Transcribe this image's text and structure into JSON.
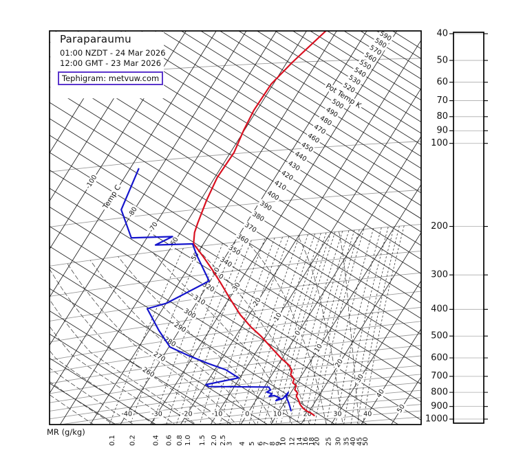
{
  "header": {
    "station": "Paraparaumu",
    "local_time": "01:00 NZDT - 24 Mar 2026",
    "gmt_time": "12:00 GMT - 23 Mar 2026",
    "source_label": "Tephigram: metvuw.com"
  },
  "axes": {
    "pressure_ticks": [
      40,
      50,
      60,
      70,
      80,
      90,
      100,
      200,
      300,
      400,
      500,
      600,
      700,
      800,
      900,
      1000
    ],
    "mr_axis_title": "MR (g/kg)",
    "mr_tick_labels": [
      "0.1",
      "0.2",
      "0.4",
      "0.6",
      "0.8",
      "1.0",
      "1.5",
      "2.0",
      "2.5",
      "3",
      "4",
      "5",
      "6",
      "7",
      "8",
      "9",
      "10",
      "12",
      "14",
      "16",
      "18",
      "20",
      "25",
      "30",
      "35",
      "40",
      "45",
      "50"
    ],
    "isotherm_axis_title": "Temp C",
    "dry_adiabat_axis_title": "Pot Temp K",
    "isotherm_band_labels": [
      -100,
      -80,
      -70,
      -60,
      -50,
      -40,
      -30,
      -20,
      -10,
      0,
      10,
      20,
      30,
      40,
      50
    ],
    "isotherm_bottom_labels": [
      -40,
      -30,
      -20,
      -10,
      0,
      10,
      20,
      30,
      40
    ],
    "dry_adiabat_labels": [
      260,
      270,
      280,
      290,
      300,
      310,
      320,
      330,
      340,
      350,
      360,
      370,
      380,
      390,
      400,
      410,
      420,
      430,
      440,
      450,
      460,
      470,
      480,
      490,
      500,
      520,
      530,
      540,
      550,
      560,
      570,
      580,
      590
    ]
  },
  "chart_data": {
    "type": "line",
    "title": "Tephigram sounding for Paraparaumu",
    "x_meaning": "temperature (C) along skewed isotherms",
    "y_meaning": "pressure (hPa), logarithmic, 40 at top to 1000 at bottom",
    "grid": {
      "isotherms_c": {
        "min": -120,
        "max": 60,
        "step": 10
      },
      "dry_adiabats_k": {
        "min": 230,
        "max": 600,
        "step": 10
      },
      "isobars_hpa": [
        50,
        100,
        150,
        200,
        250,
        300,
        350,
        400,
        450,
        500,
        550,
        600,
        650,
        700,
        750,
        800,
        850,
        900,
        950,
        1000
      ],
      "mixing_ratio_lines_gkg": [
        0.1,
        0.2,
        0.4,
        0.6,
        0.8,
        1.0,
        1.5,
        2.0,
        2.5,
        3,
        4,
        5,
        6,
        7,
        8,
        9,
        10,
        12,
        14,
        16,
        18,
        20,
        25,
        30,
        35,
        40,
        45,
        50
      ],
      "saturated_adiabat_surface_temps_c": {
        "min": -30,
        "max": 40,
        "step": 5
      },
      "mixing_ratio_top_hpa": 200
    },
    "series": [
      {
        "name": "temperature",
        "color": "#d91020",
        "points_p_t": [
          [
            38,
            -53.1
          ],
          [
            50,
            -58.2
          ],
          [
            59,
            -60.7
          ],
          [
            72,
            -61.0
          ],
          [
            84,
            -60.2
          ],
          [
            99,
            -58.8
          ],
          [
            119,
            -59.2
          ],
          [
            141,
            -58.0
          ],
          [
            167,
            -56.2
          ],
          [
            179,
            -55.3
          ],
          [
            195,
            -53.3
          ],
          [
            217,
            -47.5
          ],
          [
            244,
            -41.4
          ],
          [
            272,
            -36.0
          ],
          [
            310,
            -29.7
          ],
          [
            355,
            -23.0
          ],
          [
            394,
            -17.1
          ],
          [
            434,
            -11.6
          ],
          [
            481,
            -6.3
          ],
          [
            536,
            -0.6
          ],
          [
            577,
            3.7
          ],
          [
            607,
            5.8
          ],
          [
            628,
            6.2
          ],
          [
            653,
            8.2
          ],
          [
            675,
            8.6
          ],
          [
            694,
            10.3
          ],
          [
            718,
            10.7
          ],
          [
            741,
            12.3
          ],
          [
            762,
            12.6
          ],
          [
            791,
            14.2
          ],
          [
            820,
            15.5
          ],
          [
            853,
            17.5
          ],
          [
            877,
            19.4
          ],
          [
            896,
            21.2
          ],
          [
            914,
            22.5
          ]
        ]
      },
      {
        "name": "dewpoint",
        "color": "#1515cc",
        "points_p_t": [
          [
            105,
            -87.1
          ],
          [
            141,
            -84.4
          ],
          [
            176,
            -75.2
          ],
          [
            181,
            -61.8
          ],
          [
            190,
            -65.7
          ],
          [
            195,
            -53.6
          ],
          [
            213,
            -50.0
          ],
          [
            264,
            -40.4
          ],
          [
            300,
            -50.0
          ],
          [
            306,
            -55.2
          ],
          [
            366,
            -46.8
          ],
          [
            425,
            -39.7
          ],
          [
            470,
            -31.9
          ],
          [
            516,
            -24.0
          ],
          [
            560,
            -16.4
          ],
          [
            611,
            -10.4
          ],
          [
            625,
            -19.9
          ],
          [
            638,
            -18.6
          ],
          [
            684,
            1.5
          ],
          [
            703,
            2.7
          ],
          [
            714,
            1.9
          ],
          [
            728,
            4.0
          ],
          [
            743,
            3.6
          ],
          [
            741,
            5.1
          ],
          [
            760,
            7.3
          ],
          [
            776,
            6.7
          ],
          [
            766,
            8.6
          ],
          [
            731,
            9.1
          ],
          [
            760,
            9.4
          ],
          [
            794,
            11.1
          ],
          [
            824,
            12.4
          ],
          [
            859,
            13.8
          ]
        ]
      }
    ]
  },
  "colors": {
    "temperature_trace": "#d91020",
    "dewpoint_trace": "#1515cc",
    "grid_line": "#222222",
    "isobar_line": "#9a9a9a",
    "dashed_line": "#3a3a3a",
    "frame": "#000000",
    "source_box_border": "#5a35cc",
    "label_text": "#111111"
  }
}
